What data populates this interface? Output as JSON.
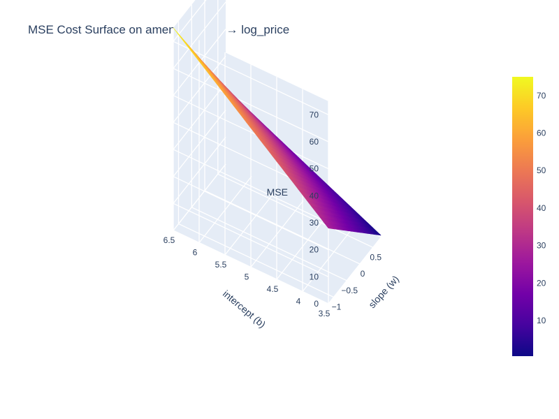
{
  "chart_data": {
    "type": "surface",
    "title": "MSE Cost Surface on amenity_count → log_price",
    "x_axis": {
      "label": "slope (w)",
      "ticks": [
        "−1",
        "−0.5",
        "0",
        "0.5"
      ],
      "range": [
        -1.2,
        0.8
      ]
    },
    "y_axis": {
      "label": "intercept (b)",
      "ticks": [
        "3.5",
        "4",
        "4.5",
        "5",
        "5.5",
        "6",
        "6.5"
      ],
      "range": [
        3.5,
        6.5
      ]
    },
    "z_axis": {
      "label": "MSE",
      "ticks": [
        "0",
        "10",
        "20",
        "30",
        "40",
        "50",
        "60",
        "70"
      ],
      "range": [
        0,
        75
      ]
    },
    "colorbar": {
      "ticks": [
        "10",
        "20",
        "30",
        "40",
        "50",
        "60",
        "70"
      ],
      "range": [
        0.5,
        75
      ]
    },
    "colorscale": [
      "#0d0887",
      "#46039f",
      "#7201a8",
      "#9c179e",
      "#bd3786",
      "#d8576b",
      "#ed7953",
      "#fb9f3a",
      "#fdca26",
      "#f0f921"
    ],
    "surface": {
      "slope_range": [
        -1.2,
        0.8
      ],
      "intercept_range": [
        3.5,
        6.5
      ],
      "mse_at_corners": {
        "slope_-1.2_intercept_3.5": 28,
        "slope_-1.2_intercept_6.5": 75,
        "slope_0.8_intercept_3.5": 0.8,
        "slope_0.8_intercept_6.5": 28
      },
      "minimum_mse": 0.5
    }
  }
}
